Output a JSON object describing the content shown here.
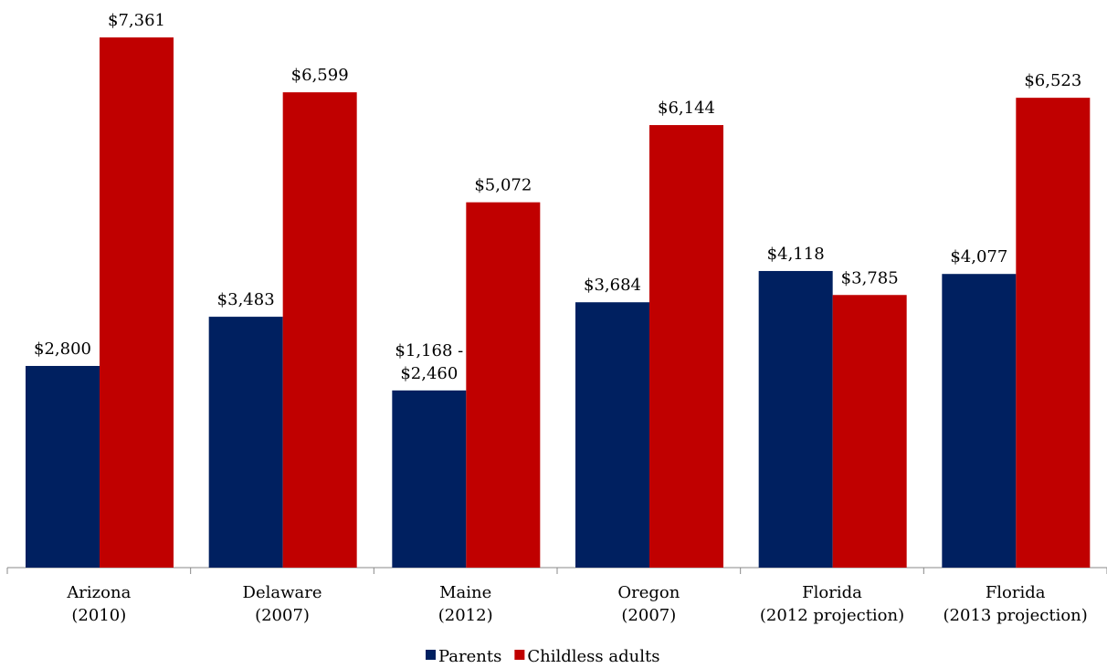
{
  "chart_data": {
    "type": "bar",
    "categories": [
      "Arizona\n(2010)",
      "Delaware\n(2007)",
      "Maine\n(2012)",
      "Oregon\n(2007)",
      "Florida\n(2012 projection)",
      "Florida\n(2013 projection)"
    ],
    "series": [
      {
        "name": "Parents",
        "color": "#002060",
        "values": [
          2800,
          3483,
          2460,
          3684,
          4118,
          4077
        ],
        "value_labels": [
          "$2,800",
          "$3,483",
          "$1,168 -\n$2,460",
          "$3,684",
          "$4,118",
          "$4,077"
        ]
      },
      {
        "name": "Childless adults",
        "color": "#c00000",
        "values": [
          7361,
          6599,
          5072,
          6144,
          3785,
          6523
        ],
        "value_labels": [
          "$7,361",
          "$6,599",
          "$5,072",
          "$6,144",
          "$3,785",
          "$6,523"
        ]
      }
    ],
    "legend": "bottom"
  }
}
